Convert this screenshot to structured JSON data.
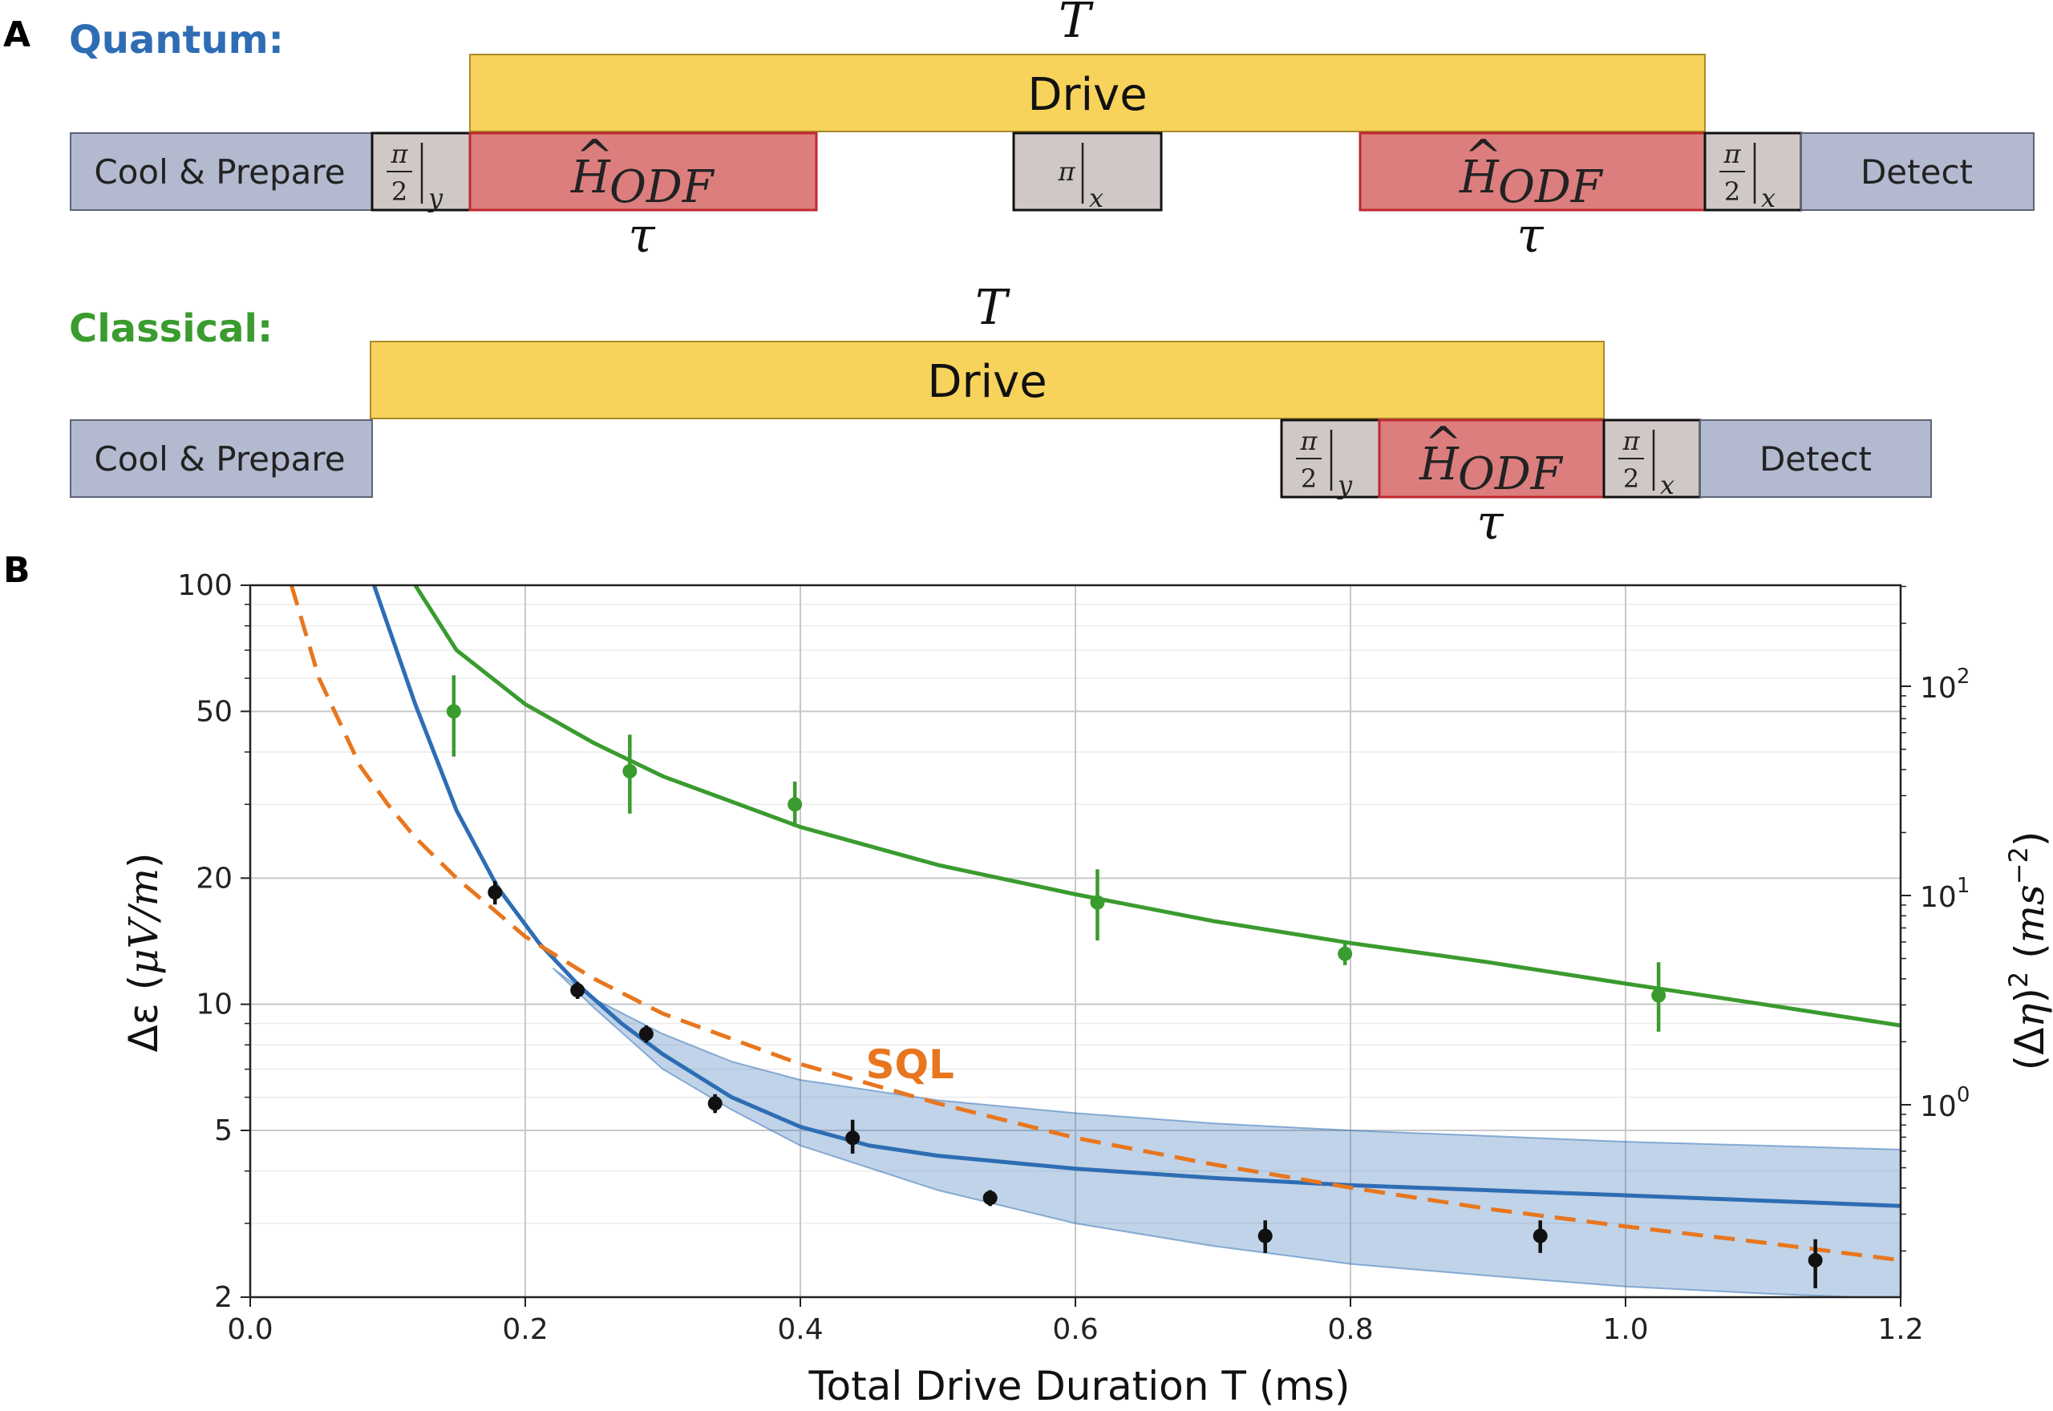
{
  "panel_a": {
    "label": "A",
    "quantum": {
      "title": "Quantum:",
      "title_color": "#2E6DB4",
      "total_label": "T",
      "drive_label": "Drive",
      "cool_label": "Cool & Prepare",
      "detect_label": "Detect",
      "odf_main": "H",
      "odf_hat": "^",
      "odf_sub": "ODF",
      "tau": "τ",
      "pulse_half_num": "π",
      "pulse_half_den": "2",
      "pi_symbol": "π",
      "sub_y": "y",
      "sub_x": "x"
    },
    "classical": {
      "title": "Classical:",
      "title_color": "#3A9B2E",
      "total_label": "T",
      "drive_label": "Drive",
      "cool_label": "Cool & Prepare",
      "detect_label": "Detect",
      "odf_main": "H",
      "odf_hat": "^",
      "odf_sub": "ODF",
      "tau": "τ",
      "pulse_half_num": "π",
      "pulse_half_den": "2",
      "sub_y": "y",
      "sub_x": "x"
    },
    "colors": {
      "drive": "#F7D35C",
      "odf": "#DC7E7E",
      "odf_border": "#C0282D",
      "cool": "#B3B9CF",
      "pulse": "#CFC8C6"
    }
  },
  "panel_b": {
    "label": "B",
    "chart_data": {
      "type": "scatter",
      "xlabel": "Total Drive Duration T (ms)",
      "ylabel_left_main": "Δε (",
      "ylabel_left_unit": "μV/m",
      "ylabel_left_close": ")",
      "ylabel_right_main": "(Δ",
      "ylabel_right_eta": "η",
      "ylabel_right_sup": "2",
      "ylabel_right_unit": "ms",
      "ylabel_right_unit_sup": "−2",
      "xlim": [
        0.0,
        1.2
      ],
      "ylim": [
        2,
        100
      ],
      "yscale": "log",
      "x_ticks": [
        0.0,
        0.2,
        0.4,
        0.6,
        0.8,
        1.0,
        1.2
      ],
      "x_tick_labels": [
        "0.0",
        "0.2",
        "0.4",
        "0.6",
        "0.8",
        "1.0",
        "1.2"
      ],
      "y_ticks": [
        2,
        5,
        10,
        20,
        50,
        100
      ],
      "y_tick_labels": [
        "2",
        "5",
        "10",
        "20",
        "50",
        "100"
      ],
      "right_axis": {
        "scale": "log",
        "ticks": [
          1,
          10,
          100
        ],
        "tick_base": "10",
        "tick_exponents": [
          "0",
          "1",
          "2"
        ]
      },
      "grid": true,
      "annotation": {
        "text": "SQL",
        "x": 0.5,
        "y": 7.2
      },
      "series": [
        {
          "kind": "points",
          "color": "#3A9B2E",
          "x": [
            0.148,
            0.276,
            0.396,
            0.616,
            0.796,
            1.024
          ],
          "y": [
            50,
            36,
            30,
            17.5,
            13.2,
            10.5
          ],
          "y_lower": [
            39,
            28.5,
            26.5,
            14.2,
            12.4,
            8.6
          ],
          "y_upper": [
            61,
            44,
            34,
            21,
            14.2,
            12.6
          ]
        },
        {
          "kind": "points",
          "color": "#111111",
          "x": [
            0.178,
            0.238,
            0.288,
            0.338,
            0.438,
            0.538,
            0.738,
            0.938,
            1.138
          ],
          "y": [
            18.5,
            10.8,
            8.5,
            5.8,
            4.8,
            3.45,
            2.8,
            2.8,
            2.45
          ],
          "y_lower": [
            17.3,
            10.3,
            8.1,
            5.5,
            4.4,
            3.3,
            2.55,
            2.55,
            2.1
          ],
          "y_upper": [
            19.7,
            11.3,
            8.9,
            6.1,
            5.3,
            3.6,
            3.05,
            3.05,
            2.75
          ]
        },
        {
          "kind": "line",
          "color": "#3A9B2E",
          "x": [
            0.12,
            0.15,
            0.2,
            0.25,
            0.3,
            0.4,
            0.5,
            0.6,
            0.7,
            0.8,
            0.9,
            1.0,
            1.1,
            1.2
          ],
          "y": [
            100,
            70,
            52,
            42,
            35,
            26.5,
            21.5,
            18.3,
            15.8,
            14.0,
            12.6,
            11.2,
            10.0,
            8.9
          ]
        },
        {
          "kind": "line",
          "color": "#2E6DB4",
          "x": [
            0.09,
            0.12,
            0.15,
            0.18,
            0.21,
            0.24,
            0.27,
            0.3,
            0.35,
            0.4,
            0.45,
            0.5,
            0.6,
            0.7,
            0.8,
            0.9,
            1.0,
            1.1,
            1.2
          ],
          "y": [
            100,
            52,
            29,
            19,
            14,
            11,
            9.0,
            7.6,
            6.0,
            5.1,
            4.6,
            4.35,
            4.05,
            3.85,
            3.7,
            3.6,
            3.5,
            3.4,
            3.3
          ]
        },
        {
          "kind": "line",
          "dashed": true,
          "color": "#E8761E",
          "x": [
            0.03,
            0.05,
            0.08,
            0.1,
            0.12,
            0.15,
            0.18,
            0.2,
            0.25,
            0.3,
            0.4,
            0.5,
            0.6,
            0.7,
            0.8,
            0.9,
            1.0,
            1.1,
            1.2
          ],
          "y": [
            100,
            60,
            37,
            30,
            25,
            20,
            16.5,
            14.5,
            11.5,
            9.5,
            7.2,
            5.8,
            4.8,
            4.15,
            3.65,
            3.25,
            2.95,
            2.7,
            2.45
          ]
        },
        {
          "kind": "band",
          "color": "#2E6DB4",
          "x": [
            0.22,
            0.25,
            0.3,
            0.35,
            0.4,
            0.5,
            0.6,
            0.7,
            0.8,
            0.9,
            1.0,
            1.1,
            1.2
          ],
          "y_upper": [
            12.2,
            10.3,
            8.5,
            7.3,
            6.6,
            5.9,
            5.5,
            5.2,
            5.0,
            4.85,
            4.7,
            4.6,
            4.5
          ],
          "y_lower": [
            12.2,
            9.8,
            7.0,
            5.6,
            4.6,
            3.6,
            3.0,
            2.65,
            2.4,
            2.25,
            2.12,
            2.04,
            1.98
          ]
        }
      ]
    }
  }
}
